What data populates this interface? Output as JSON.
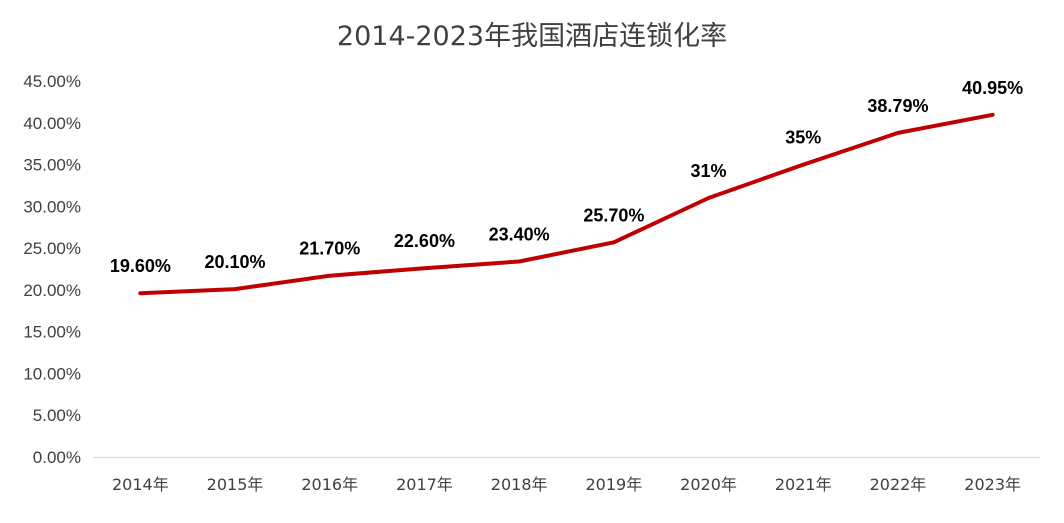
{
  "chart_data": {
    "type": "line",
    "title": "2014-2023年我国酒店连锁化率",
    "categories": [
      "2014年",
      "2015年",
      "2016年",
      "2017年",
      "2018年",
      "2019年",
      "2020年",
      "2021年",
      "2022年",
      "2023年"
    ],
    "values": [
      19.6,
      20.1,
      21.7,
      22.6,
      23.4,
      25.7,
      31,
      35,
      38.79,
      40.95
    ],
    "data_labels": [
      "19.60%",
      "20.10%",
      "21.70%",
      "22.60%",
      "23.40%",
      "25.70%",
      "31%",
      "35%",
      "38.79%",
      "40.95%"
    ],
    "yticks": [
      "0.00%",
      "5.00%",
      "10.00%",
      "15.00%",
      "20.00%",
      "25.00%",
      "30.00%",
      "35.00%",
      "40.00%",
      "45.00%"
    ],
    "ylim": [
      0,
      45
    ],
    "xlabel": "",
    "ylabel": "",
    "grid": false,
    "line_color": "#C00000",
    "drop_line_color": "#6F9BEA"
  }
}
